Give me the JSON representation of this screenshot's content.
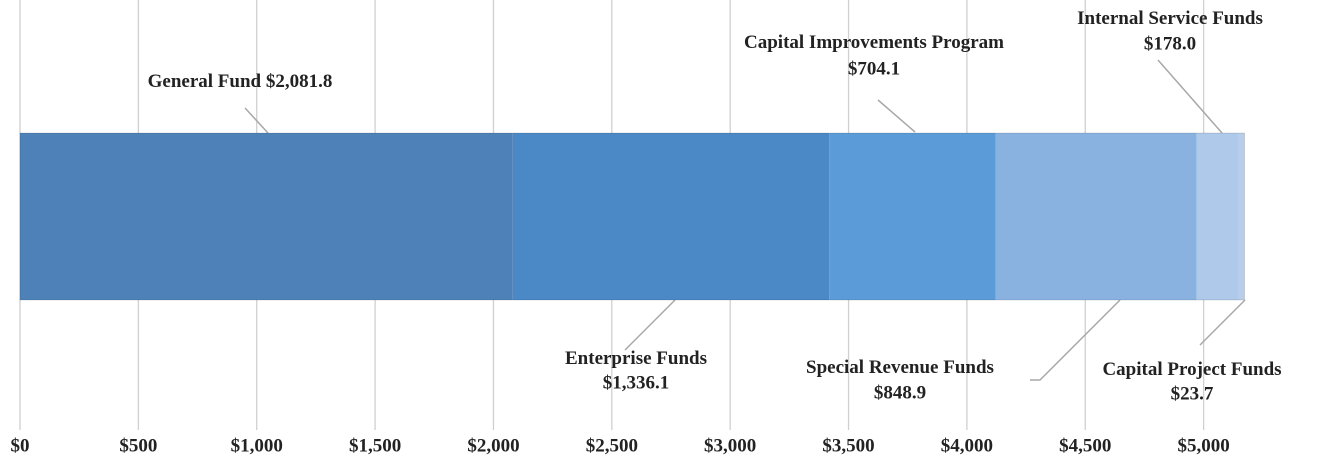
{
  "chart_data": {
    "type": "stacked_bar",
    "series": [
      {
        "name": "General Fund",
        "color": "#4f81b9",
        "values": [
          2081.8
        ],
        "value_labels": [
          "$2,081.8"
        ]
      },
      {
        "name": "Enterprise Funds",
        "color": "#4a88c6",
        "values": [
          1336.1
        ],
        "value_labels": [
          "$1,336.1"
        ]
      },
      {
        "name": "Capital Improvements Program",
        "color": "#5a9bd8",
        "values": [
          704.1
        ],
        "value_labels": [
          "$704.1"
        ]
      },
      {
        "name": "Special Revenue Funds",
        "color": "#8ab2e0",
        "values": [
          848.9
        ],
        "value_labels": [
          "$848.9"
        ]
      },
      {
        "name": "Internal Service Funds",
        "color": "#afc9ea",
        "values": [
          178.0
        ],
        "value_labels": [
          "$178.0"
        ]
      },
      {
        "name": "Capital Project Funds",
        "color": "#b9cde9",
        "values": [
          23.7
        ],
        "value_labels": [
          "$23.7"
        ]
      }
    ],
    "xlim": [
      0,
      5500
    ],
    "xticks": [
      {
        "value": 0,
        "label": "$0"
      },
      {
        "value": 500,
        "label": "$500"
      },
      {
        "value": 1000,
        "label": "$1,000"
      },
      {
        "value": 1500,
        "label": "$1,500"
      },
      {
        "value": 2000,
        "label": "$2,000"
      },
      {
        "value": 2500,
        "label": "$2,500"
      },
      {
        "value": 3000,
        "label": "$3,000"
      },
      {
        "value": 3500,
        "label": "$3,500"
      },
      {
        "value": 4000,
        "label": "$4,000"
      },
      {
        "value": 4500,
        "label": "$4,500"
      },
      {
        "value": 5000,
        "label": "$5,000"
      }
    ],
    "grid": true
  }
}
